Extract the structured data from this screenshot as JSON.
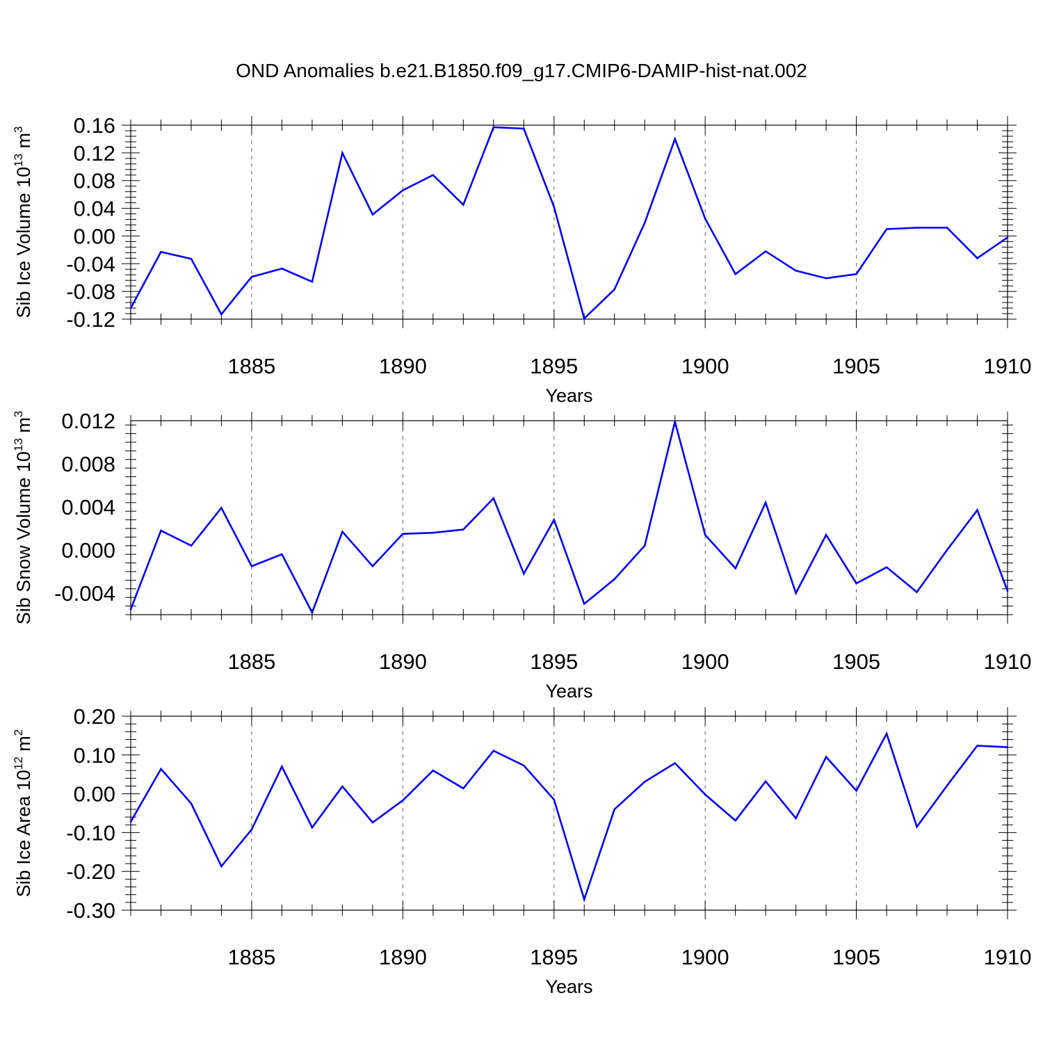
{
  "title": "OND Anomalies b.e21.B1850.f09_g17.CMIP6-DAMIP-hist-nat.002",
  "chart_data": [
    {
      "type": "line",
      "ylabel_main": "Sib Ice Volume 10",
      "ylabel_exp": "13",
      "ylabel_unit": "m",
      "ylabel_unit_exp": "3",
      "xlabel": "Years",
      "xlim": [
        1881,
        1910
      ],
      "ylim": [
        -0.12,
        0.16
      ],
      "yticks": [
        -0.12,
        -0.08,
        -0.04,
        0.0,
        0.04,
        0.08,
        0.12,
        0.16
      ],
      "ytick_labels": [
        "-0.12",
        "-0.08",
        "-0.04",
        "0.00",
        "0.04",
        "0.08",
        "0.12",
        "0.16"
      ],
      "xticks": [
        1885,
        1890,
        1895,
        1900,
        1905,
        1910
      ],
      "xtick_labels": [
        "1885",
        "1890",
        "1895",
        "1900",
        "1905",
        "1910"
      ],
      "color": "#0000ff",
      "x": [
        1881,
        1882,
        1883,
        1884,
        1885,
        1886,
        1887,
        1888,
        1889,
        1890,
        1891,
        1892,
        1893,
        1894,
        1895,
        1896,
        1897,
        1898,
        1899,
        1900,
        1901,
        1902,
        1903,
        1904,
        1905,
        1906,
        1907,
        1908,
        1909,
        1910
      ],
      "values": [
        -0.104,
        -0.023,
        -0.033,
        -0.113,
        -0.059,
        -0.047,
        -0.066,
        0.12,
        0.031,
        0.066,
        0.088,
        0.045,
        0.157,
        0.155,
        0.042,
        -0.119,
        -0.077,
        0.019,
        0.14,
        0.025,
        -0.055,
        -0.022,
        -0.05,
        -0.061,
        -0.055,
        0.01,
        0.012,
        0.012,
        -0.032,
        -0.002
      ]
    },
    {
      "type": "line",
      "ylabel_main": "Sib Snow Volume 10",
      "ylabel_exp": "13",
      "ylabel_unit": "m",
      "ylabel_unit_exp": "3",
      "xlabel": "Years",
      "xlim": [
        1881,
        1910
      ],
      "ylim": [
        -0.006,
        0.012
      ],
      "yticks": [
        -0.004,
        0.0,
        0.004,
        0.008,
        0.012
      ],
      "ytick_labels": [
        "-0.004",
        "0.000",
        "0.004",
        "0.008",
        "0.012"
      ],
      "xticks": [
        1885,
        1890,
        1895,
        1900,
        1905,
        1910
      ],
      "xtick_labels": [
        "1885",
        "1890",
        "1895",
        "1900",
        "1905",
        "1910"
      ],
      "color": "#0000ff",
      "x": [
        1881,
        1882,
        1883,
        1884,
        1885,
        1886,
        1887,
        1888,
        1889,
        1890,
        1891,
        1892,
        1893,
        1894,
        1895,
        1896,
        1897,
        1898,
        1899,
        1900,
        1901,
        1902,
        1903,
        1904,
        1905,
        1906,
        1907,
        1908,
        1909,
        1910
      ],
      "values": [
        -0.0055,
        0.0018,
        0.0004,
        0.0039,
        -0.0015,
        -0.0004,
        -0.0058,
        0.0017,
        -0.0015,
        0.0015,
        0.0016,
        0.0019,
        0.0048,
        -0.0022,
        0.0028,
        -0.005,
        -0.0027,
        0.0004,
        0.0119,
        0.0014,
        -0.0017,
        0.0044,
        -0.004,
        0.0014,
        -0.0031,
        -0.0016,
        -0.0039,
        0.0,
        0.0037,
        -0.0038
      ]
    },
    {
      "type": "line",
      "ylabel_main": "Sib Ice Area 10",
      "ylabel_exp": "12",
      "ylabel_unit": "m",
      "ylabel_unit_exp": "2",
      "xlabel": "Years",
      "xlim": [
        1881,
        1910
      ],
      "ylim": [
        -0.3,
        0.2
      ],
      "yticks": [
        -0.3,
        -0.2,
        -0.1,
        0.0,
        0.1,
        0.2
      ],
      "ytick_labels": [
        "-0.30",
        "-0.20",
        "-0.10",
        "0.00",
        "0.10",
        "0.20"
      ],
      "xticks": [
        1885,
        1890,
        1895,
        1900,
        1905,
        1910
      ],
      "xtick_labels": [
        "1885",
        "1890",
        "1895",
        "1900",
        "1905",
        "1910"
      ],
      "color": "#0000ff",
      "x": [
        1881,
        1882,
        1883,
        1884,
        1885,
        1886,
        1887,
        1888,
        1889,
        1890,
        1891,
        1892,
        1893,
        1894,
        1895,
        1896,
        1897,
        1898,
        1899,
        1900,
        1901,
        1902,
        1903,
        1904,
        1905,
        1906,
        1907,
        1908,
        1909,
        1910
      ],
      "values": [
        -0.072,
        0.064,
        -0.025,
        -0.187,
        -0.092,
        0.07,
        -0.087,
        0.019,
        -0.074,
        -0.017,
        0.06,
        0.014,
        0.111,
        0.073,
        -0.015,
        -0.272,
        -0.04,
        0.031,
        0.079,
        -0.002,
        -0.069,
        0.032,
        -0.063,
        0.095,
        0.008,
        0.155,
        -0.085,
        0.021,
        0.124,
        0.12
      ]
    }
  ]
}
